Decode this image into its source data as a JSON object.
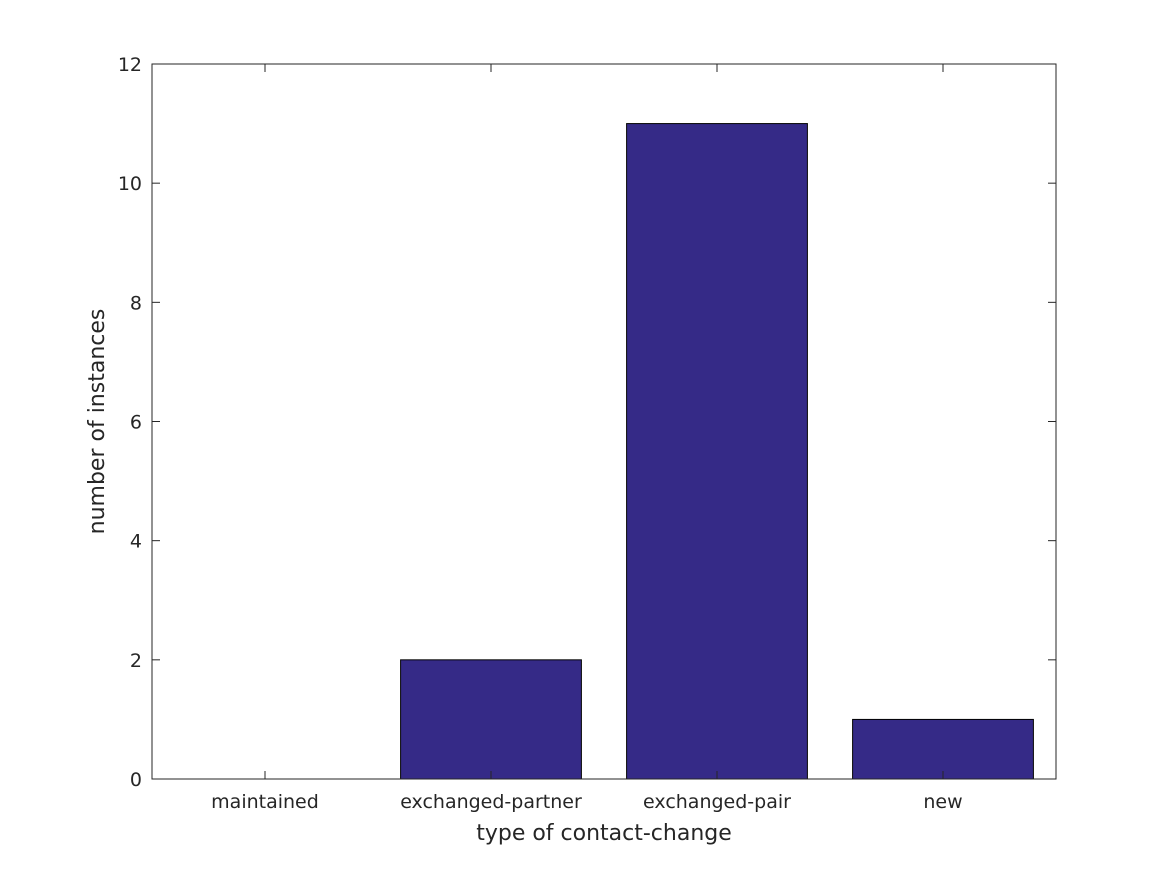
{
  "chart_data": {
    "type": "bar",
    "categories": [
      "maintained",
      "exchanged-partner",
      "exchanged-pair",
      "new"
    ],
    "values": [
      0,
      2,
      11,
      1
    ],
    "xlabel": "type of contact-change",
    "ylabel": "number of instances",
    "ylim": [
      0,
      12
    ],
    "yticks": [
      0,
      2,
      4,
      6,
      8,
      10,
      12
    ],
    "ytick_labels": [
      "0",
      "2",
      "4",
      "6",
      "8",
      "10",
      "12"
    ],
    "grid": false,
    "box": true,
    "bar_color": "#352a87",
    "bar_edge_color": "#000000",
    "axis_color": "#262626"
  }
}
